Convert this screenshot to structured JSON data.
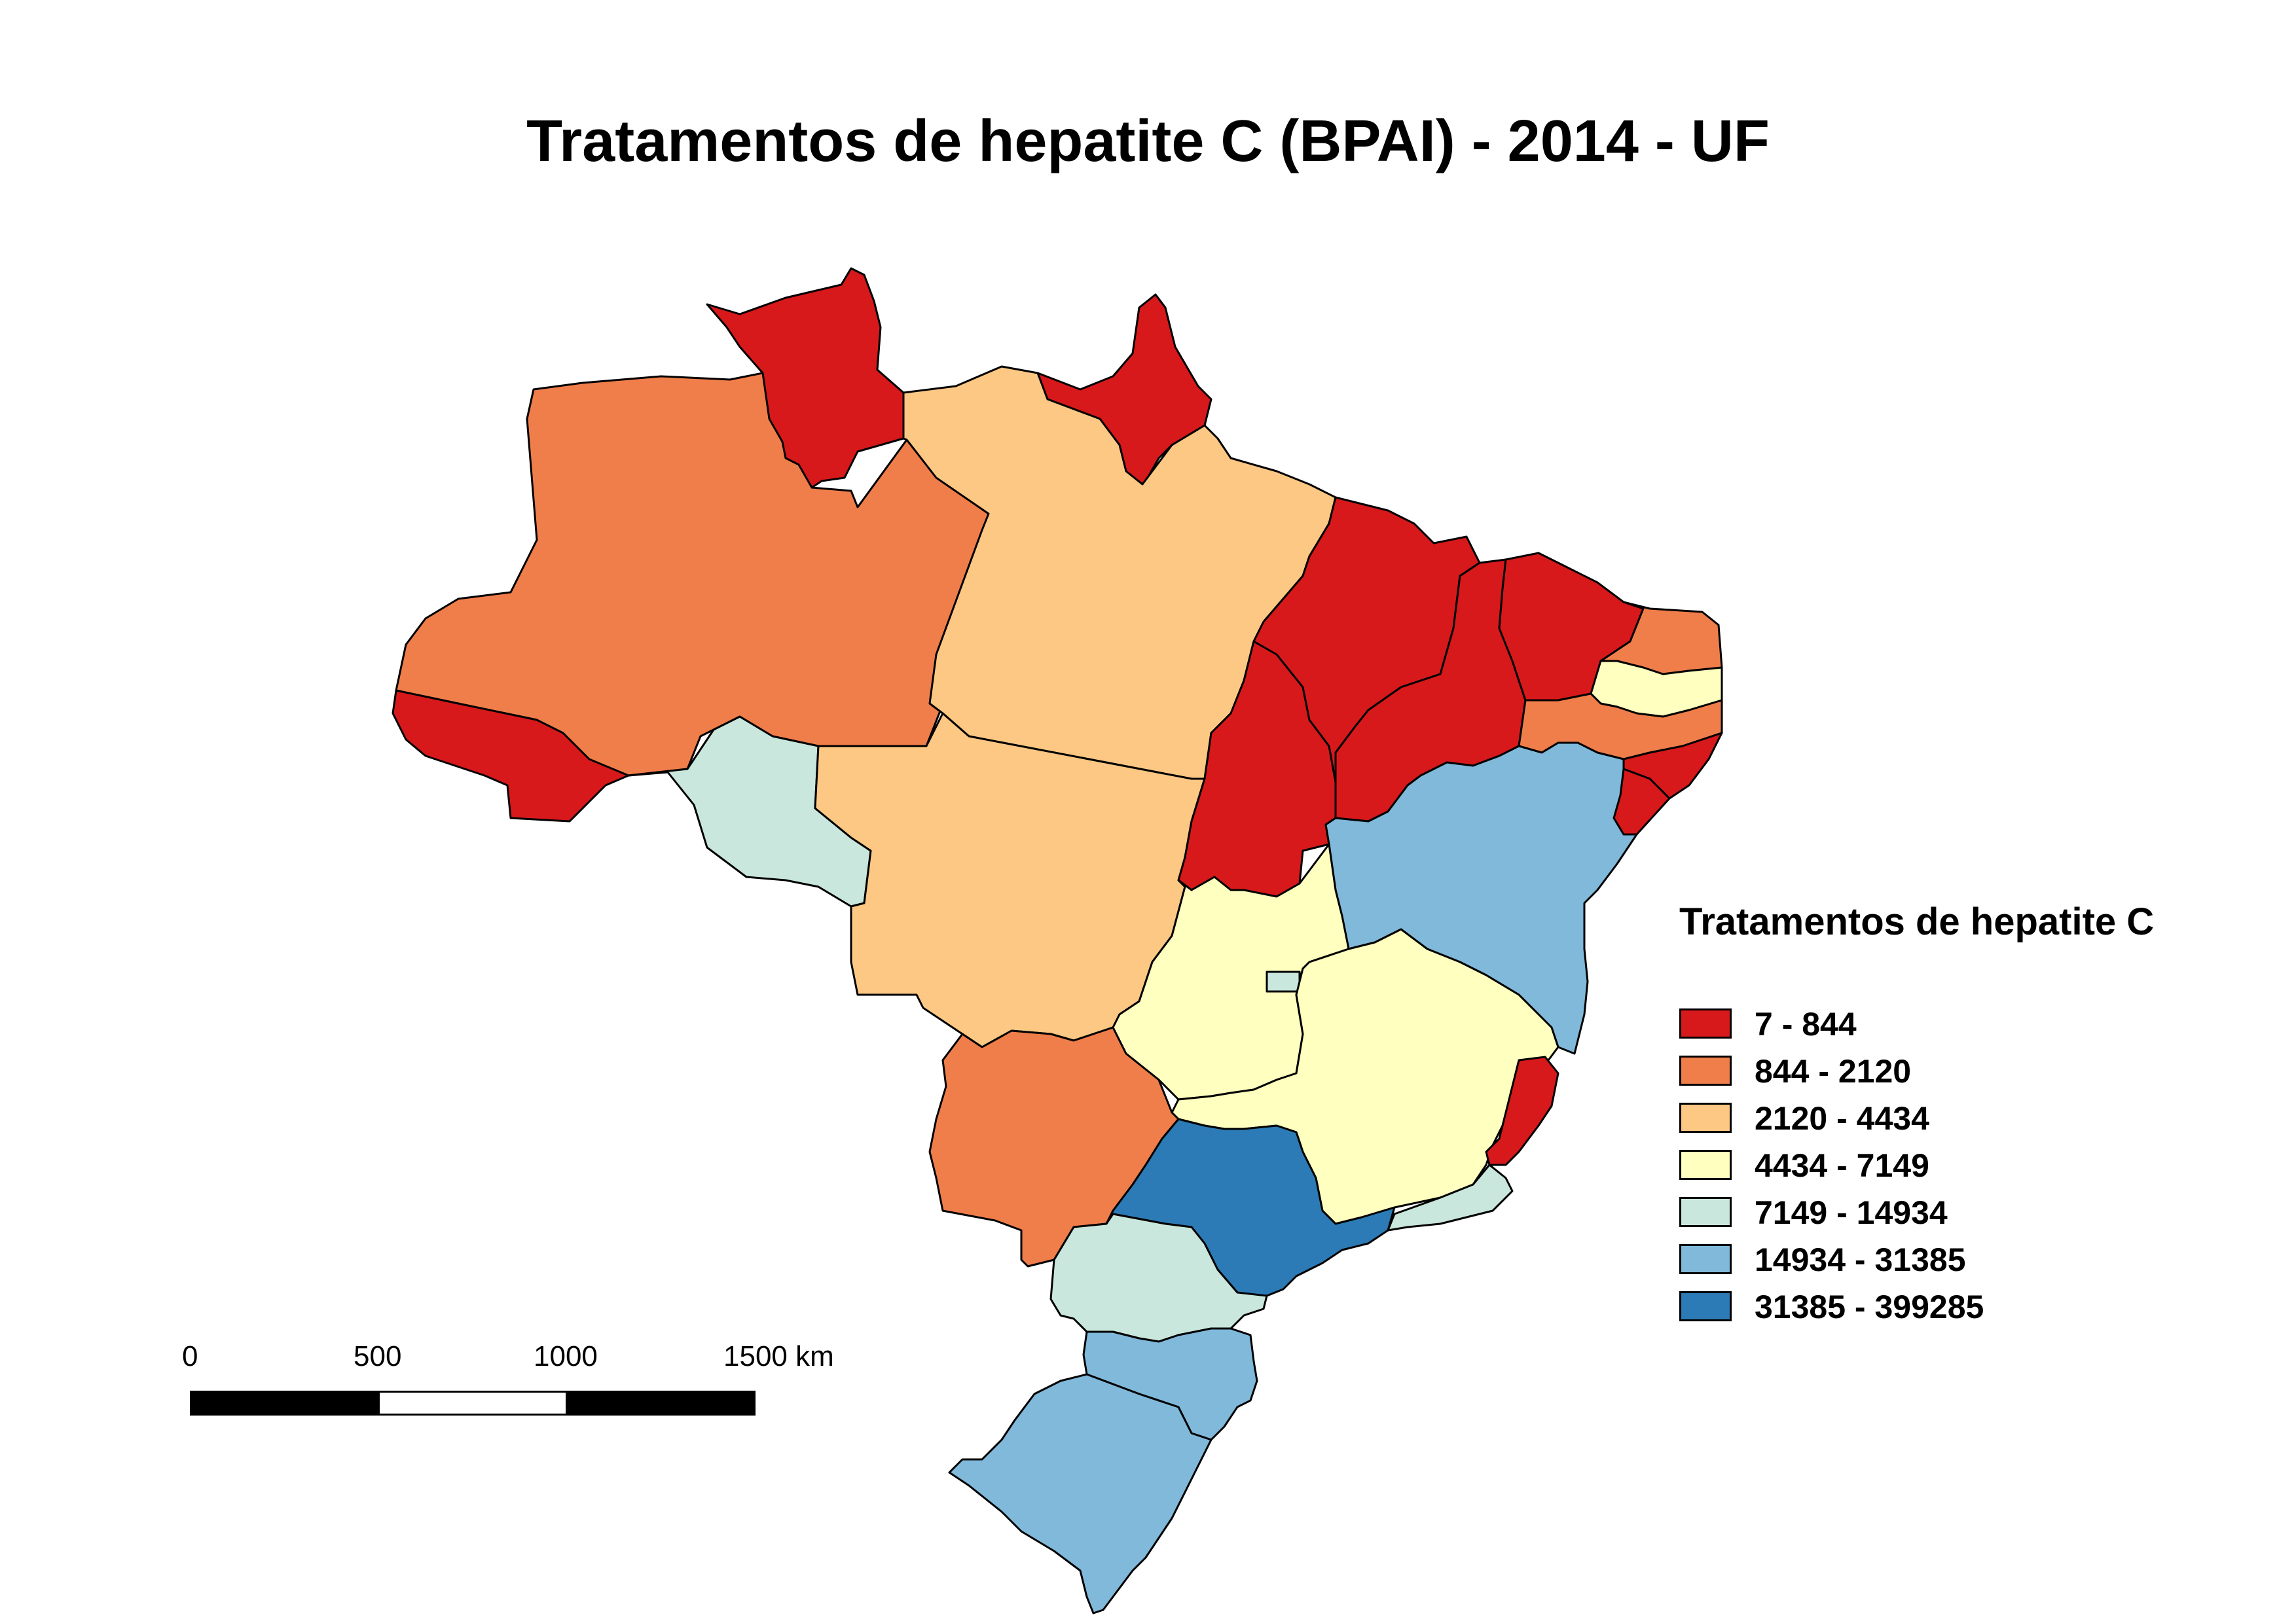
{
  "title": "Tratamentos de hepatite C (BPAI) - 2014 - UF",
  "legend": {
    "title": "Tratamentos de hepatite C",
    "classes": [
      {
        "label": "7 - 844",
        "color": "#d7191c"
      },
      {
        "label": "844 - 2120",
        "color": "#f07e4b"
      },
      {
        "label": "2120 - 4434",
        "color": "#fdc884"
      },
      {
        "label": "4434 - 7149",
        "color": "#ffffbf"
      },
      {
        "label": "7149 - 14934",
        "color": "#c9e7dc"
      },
      {
        "label": "14934 - 31385",
        "color": "#80b9da"
      },
      {
        "label": "31385 - 399285",
        "color": "#2c7bb6"
      }
    ]
  },
  "scale_bar": {
    "labels": [
      "0",
      "500",
      "1000",
      "1500 km"
    ]
  },
  "states": [
    {
      "uf": "AM",
      "class_index": 1
    },
    {
      "uf": "RR",
      "class_index": 0
    },
    {
      "uf": "AP",
      "class_index": 0
    },
    {
      "uf": "PA",
      "class_index": 2
    },
    {
      "uf": "AC",
      "class_index": 0
    },
    {
      "uf": "RO",
      "class_index": 4
    },
    {
      "uf": "MT",
      "class_index": 2
    },
    {
      "uf": "TO",
      "class_index": 0
    },
    {
      "uf": "MA",
      "class_index": 0
    },
    {
      "uf": "PI",
      "class_index": 0
    },
    {
      "uf": "CE",
      "class_index": 0
    },
    {
      "uf": "RN",
      "class_index": 1
    },
    {
      "uf": "PB",
      "class_index": 3
    },
    {
      "uf": "PE",
      "class_index": 1
    },
    {
      "uf": "AL",
      "class_index": 0
    },
    {
      "uf": "SE",
      "class_index": 0
    },
    {
      "uf": "BA",
      "class_index": 5
    },
    {
      "uf": "GO",
      "class_index": 3
    },
    {
      "uf": "DF",
      "class_index": 4
    },
    {
      "uf": "MG",
      "class_index": 3
    },
    {
      "uf": "ES",
      "class_index": 0
    },
    {
      "uf": "RJ",
      "class_index": 4
    },
    {
      "uf": "MS",
      "class_index": 1
    },
    {
      "uf": "SP",
      "class_index": 6
    },
    {
      "uf": "PR",
      "class_index": 4
    },
    {
      "uf": "SC",
      "class_index": 5
    },
    {
      "uf": "RS",
      "class_index": 5
    }
  ]
}
